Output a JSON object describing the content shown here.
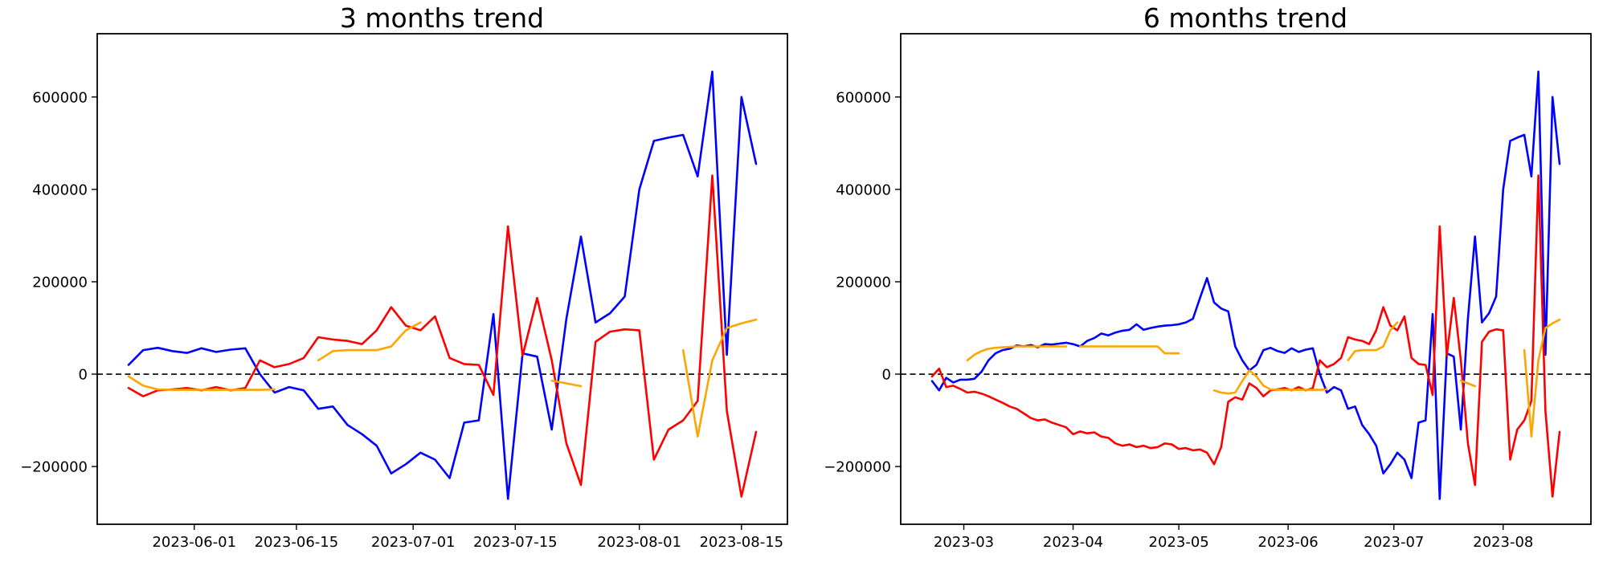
{
  "figure": {
    "background": "#ffffff"
  },
  "chart_data": {
    "type": "line",
    "grid": false,
    "legend": null,
    "ylim": [
      -325000,
      737000
    ],
    "y_ticks": [
      {
        "value": -200000,
        "label": "−200000"
      },
      {
        "value": 0,
        "label": "0"
      },
      {
        "value": 200000,
        "label": "200000"
      },
      {
        "value": 400000,
        "label": "400000"
      },
      {
        "value": 600000,
        "label": "600000"
      }
    ],
    "zero_line": {
      "value": 0,
      "style": "dashed",
      "color": "#000000"
    },
    "dates": [
      "2023-02-20",
      "2023-02-22",
      "2023-02-24",
      "2023-02-26",
      "2023-02-28",
      "2023-03-02",
      "2023-03-04",
      "2023-03-06",
      "2023-03-08",
      "2023-03-10",
      "2023-03-12",
      "2023-03-14",
      "2023-03-16",
      "2023-03-18",
      "2023-03-20",
      "2023-03-22",
      "2023-03-24",
      "2023-03-26",
      "2023-03-28",
      "2023-03-30",
      "2023-04-01",
      "2023-04-03",
      "2023-04-05",
      "2023-04-07",
      "2023-04-09",
      "2023-04-11",
      "2023-04-13",
      "2023-04-15",
      "2023-04-17",
      "2023-04-19",
      "2023-04-21",
      "2023-04-23",
      "2023-04-25",
      "2023-04-27",
      "2023-04-29",
      "2023-05-01",
      "2023-05-03",
      "2023-05-05",
      "2023-05-07",
      "2023-05-09",
      "2023-05-11",
      "2023-05-13",
      "2023-05-15",
      "2023-05-17",
      "2023-05-19",
      "2023-05-21",
      "2023-05-23",
      "2023-05-25",
      "2023-05-27",
      "2023-05-29",
      "2023-05-31",
      "2023-06-02",
      "2023-06-04",
      "2023-06-06",
      "2023-06-08",
      "2023-06-10",
      "2023-06-12",
      "2023-06-14",
      "2023-06-16",
      "2023-06-18",
      "2023-06-20",
      "2023-06-22",
      "2023-06-24",
      "2023-06-26",
      "2023-06-28",
      "2023-06-30",
      "2023-07-02",
      "2023-07-04",
      "2023-07-06",
      "2023-07-08",
      "2023-07-10",
      "2023-07-12",
      "2023-07-14",
      "2023-07-16",
      "2023-07-18",
      "2023-07-20",
      "2023-07-22",
      "2023-07-24",
      "2023-07-26",
      "2023-07-28",
      "2023-07-30",
      "2023-08-01",
      "2023-08-03",
      "2023-08-05",
      "2023-08-07",
      "2023-08-09",
      "2023-08-11",
      "2023-08-13",
      "2023-08-15",
      "2023-08-17"
    ],
    "series": [
      {
        "name": "blue",
        "color": "#0000ff",
        "values": [
          -15000,
          -35000,
          -8000,
          -18000,
          -12000,
          -12000,
          -10000,
          5000,
          30000,
          45000,
          52000,
          55000,
          62000,
          60000,
          63000,
          58000,
          65000,
          64000,
          66000,
          68000,
          65000,
          60000,
          72000,
          78000,
          88000,
          84000,
          90000,
          94000,
          96000,
          108000,
          96000,
          100000,
          103000,
          105000,
          106000,
          108000,
          112000,
          120000,
          165000,
          208000,
          155000,
          142000,
          136000,
          60000,
          30000,
          8000,
          20000,
          52000,
          57000,
          50000,
          46000,
          56000,
          48000,
          53000,
          56000,
          0,
          -40000,
          -28000,
          -35000,
          -75000,
          -70000,
          -110000,
          -130000,
          -155000,
          -215000,
          -195000,
          -170000,
          -185000,
          -225000,
          -105000,
          -100000,
          130000,
          -270000,
          45000,
          38000,
          -120000,
          120000,
          298000,
          112000,
          132000,
          168000,
          400000,
          505000,
          512000,
          518000,
          428000,
          655000,
          42000,
          600000,
          455000
        ]
      },
      {
        "name": "red",
        "color": "#ff0000",
        "values": [
          -5000,
          12000,
          -28000,
          -25000,
          -32000,
          -40000,
          -38000,
          -42000,
          -48000,
          -55000,
          -62000,
          -70000,
          -75000,
          -85000,
          -95000,
          -100000,
          -98000,
          -105000,
          -110000,
          -115000,
          -130000,
          -124000,
          -128000,
          -126000,
          -135000,
          -138000,
          -150000,
          -155000,
          -152000,
          -158000,
          -155000,
          -160000,
          -158000,
          -150000,
          -152000,
          -162000,
          -160000,
          -165000,
          -163000,
          -170000,
          -195000,
          -158000,
          -60000,
          -50000,
          -55000,
          -20000,
          -30000,
          -48000,
          -35000,
          -33000,
          -30000,
          -35000,
          -28000,
          -35000,
          -30000,
          30000,
          15000,
          22000,
          35000,
          80000,
          75000,
          72000,
          65000,
          95000,
          145000,
          105000,
          95000,
          125000,
          35000,
          22000,
          20000,
          -45000,
          320000,
          40000,
          165000,
          30000,
          -150000,
          -240000,
          70000,
          92000,
          97000,
          95000,
          -185000,
          -120000,
          -100000,
          -58000,
          430000,
          -80000,
          -265000,
          -125000
        ]
      },
      {
        "name": "orange",
        "color": "#ffa500",
        "values": [
          null,
          null,
          null,
          null,
          null,
          30000,
          42000,
          50000,
          55000,
          57000,
          58000,
          59000,
          60000,
          60000,
          60000,
          60000,
          60000,
          60000,
          60000,
          60000,
          null,
          60000,
          60000,
          60000,
          60000,
          60000,
          60000,
          60000,
          60000,
          60000,
          60000,
          60000,
          60000,
          45000,
          45000,
          45000,
          null,
          null,
          null,
          null,
          -35000,
          -40000,
          -42000,
          -40000,
          -15000,
          8000,
          -5000,
          -25000,
          -33000,
          -34000,
          -34000,
          -34000,
          -34000,
          -34000,
          -34000,
          -34000,
          -33000,
          null,
          null,
          30000,
          50000,
          52000,
          52000,
          52000,
          60000,
          95000,
          112000,
          null,
          null,
          null,
          null,
          null,
          null,
          null,
          null,
          -14000,
          -20000,
          -26000,
          null,
          null,
          null,
          null,
          null,
          null,
          52000,
          -135000,
          30000,
          100000,
          110000,
          118000
        ]
      }
    ],
    "charts": [
      {
        "id": "left",
        "title": "3 months trend",
        "start_date": "2023-05-23",
        "end_date": "2023-08-17",
        "x_margin_frac": 0.05,
        "x_ticks": [
          {
            "date": "2023-06-01",
            "label": "2023-06-01"
          },
          {
            "date": "2023-06-15",
            "label": "2023-06-15"
          },
          {
            "date": "2023-07-01",
            "label": "2023-07-01"
          },
          {
            "date": "2023-07-15",
            "label": "2023-07-15"
          },
          {
            "date": "2023-08-01",
            "label": "2023-08-01"
          },
          {
            "date": "2023-08-15",
            "label": "2023-08-15"
          }
        ]
      },
      {
        "id": "right",
        "title": "6 months trend",
        "start_date": "2023-02-20",
        "end_date": "2023-08-17",
        "x_margin_frac": 0.05,
        "x_ticks": [
          {
            "date": "2023-03-01",
            "label": "2023-03"
          },
          {
            "date": "2023-04-01",
            "label": "2023-04"
          },
          {
            "date": "2023-05-01",
            "label": "2023-05"
          },
          {
            "date": "2023-06-01",
            "label": "2023-06"
          },
          {
            "date": "2023-07-01",
            "label": "2023-07"
          },
          {
            "date": "2023-08-01",
            "label": "2023-08"
          }
        ]
      }
    ]
  }
}
